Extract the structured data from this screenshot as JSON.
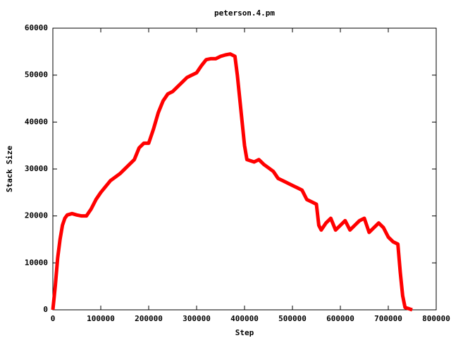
{
  "chart_data": {
    "type": "line",
    "title": "peterson.4.pm",
    "x_label": "Step",
    "y_label": "Stack Size",
    "color": "#ff0000",
    "x": [
      0,
      5000,
      10000,
      15000,
      20000,
      25000,
      30000,
      40000,
      50000,
      60000,
      70000,
      80000,
      90000,
      100000,
      120000,
      140000,
      160000,
      170000,
      180000,
      190000,
      200000,
      210000,
      220000,
      230000,
      240000,
      250000,
      260000,
      270000,
      280000,
      290000,
      300000,
      310000,
      320000,
      330000,
      340000,
      350000,
      360000,
      370000,
      380000,
      385000,
      390000,
      395000,
      400000,
      405000,
      420000,
      430000,
      440000,
      460000,
      470000,
      480000,
      490000,
      500000,
      510000,
      520000,
      530000,
      540000,
      550000,
      555000,
      560000,
      570000,
      580000,
      590000,
      600000,
      610000,
      620000,
      630000,
      640000,
      650000,
      660000,
      670000,
      680000,
      690000,
      700000,
      710000,
      720000,
      725000,
      730000,
      735000,
      750000
    ],
    "values": [
      0,
      5000,
      11000,
      15000,
      18000,
      19500,
      20200,
      20500,
      20200,
      20000,
      20000,
      21500,
      23500,
      25000,
      27500,
      29000,
      31000,
      32000,
      34500,
      35500,
      35500,
      38500,
      42000,
      44500,
      46000,
      46500,
      47500,
      48500,
      49500,
      50000,
      50500,
      52000,
      53300,
      53500,
      53500,
      54000,
      54300,
      54500,
      54000,
      50000,
      45000,
      40000,
      35000,
      32000,
      31500,
      32000,
      31000,
      29500,
      28000,
      27500,
      27000,
      26500,
      26000,
      25500,
      23500,
      23000,
      22500,
      18000,
      17000,
      18500,
      19500,
      17000,
      18000,
      19000,
      17000,
      18000,
      19000,
      19500,
      16500,
      17500,
      18500,
      17500,
      15500,
      14500,
      14000,
      8000,
      3000,
      500,
      0
    ],
    "xlim": [
      0,
      800000
    ],
    "ylim": [
      0,
      60000
    ],
    "xticks": [
      0,
      100000,
      200000,
      300000,
      400000,
      500000,
      600000,
      700000,
      800000
    ],
    "yticks": [
      0,
      10000,
      20000,
      30000,
      40000,
      50000,
      60000
    ]
  }
}
